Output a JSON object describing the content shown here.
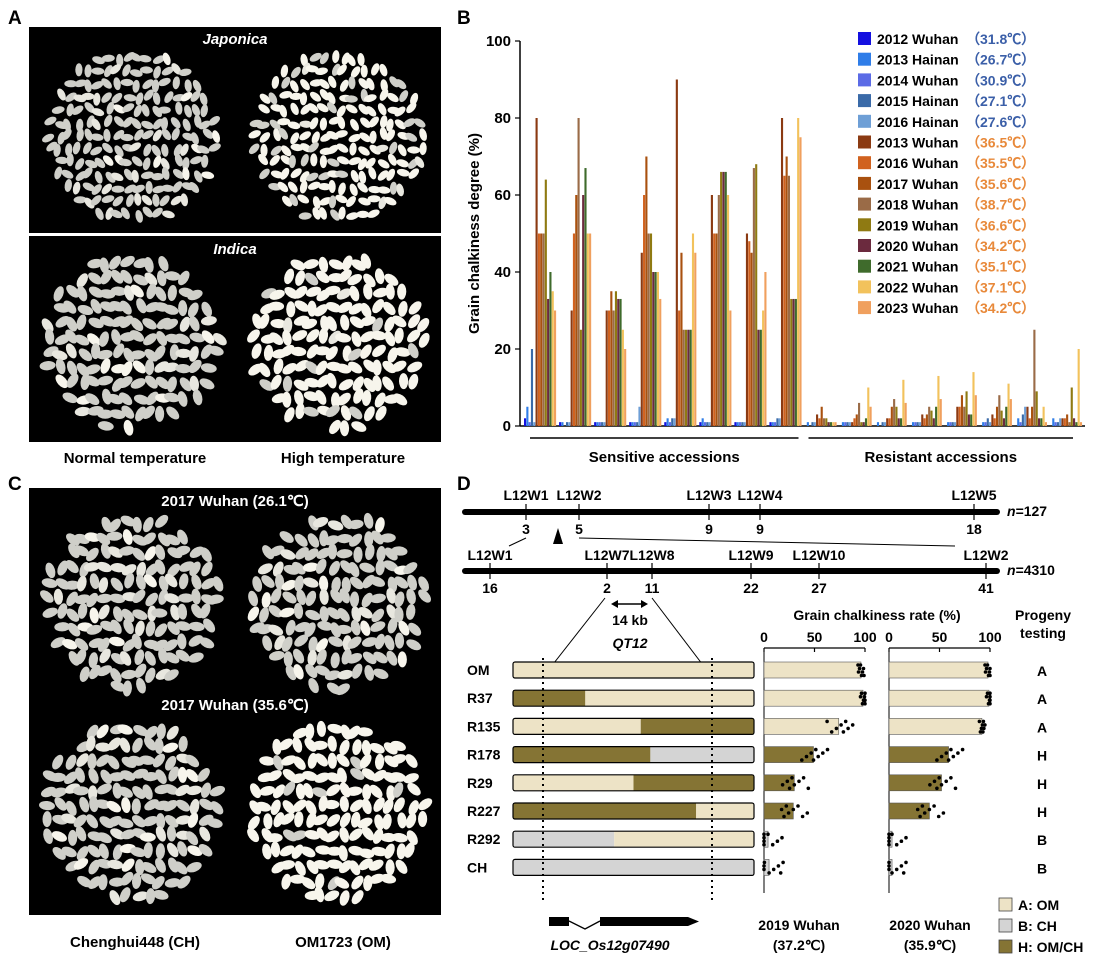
{
  "panels": {
    "a": {
      "letter": "A",
      "top_title": "Japonica",
      "bottom_title": "Indica",
      "caption_left": "Normal temperature",
      "caption_right": "High temperature"
    },
    "b": {
      "letter": "B"
    },
    "c": {
      "letter": "C",
      "top_title": "2017 Wuhan (26.1℃)",
      "bottom_title": "2017 Wuhan (35.6℃)",
      "caption_left": "Chenghui448 (CH)",
      "caption_right": "OM1723 (OM)"
    },
    "d": {
      "letter": "D"
    }
  },
  "colors": {
    "grain": "#cfcfc9",
    "grain_chalky": "#f7f5ec",
    "photo_bg": "#000000",
    "cool_temp": "#3b5fa8",
    "hot_temp": "#e8893a",
    "om_fill": "#ede3c6",
    "ch_fill": "#d4d4d4",
    "het_fill": "#857434"
  },
  "chart_data": {
    "type": "bar",
    "ylabel": "Grain chalkiness degree (%)",
    "ylim": [
      0,
      100
    ],
    "yticks": [
      "0",
      "20",
      "40",
      "60",
      "80",
      "100"
    ],
    "group_labels": [
      "Sensitive accessions",
      "Resistant accessions"
    ],
    "sensitive_count": 8,
    "resistant_count": 8,
    "legend": [
      {
        "year_site": "2012 Wuhan",
        "temp": "（31.8℃）",
        "color": "#1410e0",
        "temp_class": "cool"
      },
      {
        "year_site": "2013 Hainan",
        "temp": "（26.7℃）",
        "color": "#2f7de8",
        "temp_class": "cool"
      },
      {
        "year_site": "2014 Wuhan",
        "temp": "（30.9℃）",
        "color": "#5b6be6",
        "temp_class": "cool"
      },
      {
        "year_site": "2015 Hainan",
        "temp": "（27.1℃）",
        "color": "#3a6aa8",
        "temp_class": "cool"
      },
      {
        "year_site": "2016 Hainan",
        "temp": "（27.6℃）",
        "color": "#6e9fd6",
        "temp_class": "cool"
      },
      {
        "year_site": "2013 Wuhan",
        "temp": "（36.5℃）",
        "color": "#8b3a12",
        "temp_class": "hot"
      },
      {
        "year_site": "2016 Wuhan",
        "temp": "（35.5℃）",
        "color": "#d1621f",
        "temp_class": "hot"
      },
      {
        "year_site": "2017 Wuhan",
        "temp": "（35.6℃）",
        "color": "#a9510f",
        "temp_class": "hot"
      },
      {
        "year_site": "2018 Wuhan",
        "temp": "（38.7℃）",
        "color": "#9a6b47",
        "temp_class": "hot"
      },
      {
        "year_site": "2019 Wuhan",
        "temp": "（36.6℃）",
        "color": "#8f7a12",
        "temp_class": "hot"
      },
      {
        "year_site": "2020 Wuhan",
        "temp": "（34.2℃）",
        "color": "#6b2a3e",
        "temp_class": "hot"
      },
      {
        "year_site": "2021 Wuhan",
        "temp": "（35.1℃）",
        "color": "#3f6b2c",
        "temp_class": "hot"
      },
      {
        "year_site": "2022 Wuhan",
        "temp": "（37.1℃）",
        "color": "#f2c25c",
        "temp_class": "hot"
      },
      {
        "year_site": "2023 Wuhan",
        "temp": "（34.2℃）",
        "color": "#f0a05e",
        "temp_class": "hot"
      }
    ],
    "series_values": [
      [
        2,
        1,
        1,
        1,
        1,
        1,
        1,
        1,
        0,
        0,
        0,
        0,
        0,
        0,
        0,
        0
      ],
      [
        5,
        1,
        1,
        1,
        2,
        2,
        1,
        1,
        1,
        1,
        1,
        1,
        1,
        1,
        2,
        2
      ],
      [
        1,
        0,
        1,
        1,
        1,
        1,
        1,
        1,
        0,
        1,
        0,
        1,
        1,
        1,
        1,
        1
      ],
      [
        20,
        1,
        1,
        1,
        2,
        1,
        1,
        2,
        1,
        1,
        1,
        1,
        1,
        2,
        3,
        1
      ],
      [
        1,
        1,
        1,
        5,
        2,
        1,
        1,
        2,
        1,
        1,
        1,
        1,
        1,
        1,
        5,
        2
      ],
      [
        80,
        30,
        30,
        45,
        90,
        60,
        50,
        80,
        3,
        1,
        2,
        3,
        5,
        3,
        5,
        2
      ],
      [
        50,
        50,
        30,
        60,
        30,
        50,
        48,
        65,
        2,
        2,
        2,
        2,
        5,
        2,
        2,
        2
      ],
      [
        50,
        60,
        35,
        70,
        45,
        50,
        45,
        70,
        5,
        3,
        5,
        3,
        8,
        5,
        5,
        3
      ],
      [
        50,
        80,
        30,
        50,
        25,
        60,
        67,
        65,
        2,
        6,
        7,
        5,
        5,
        8,
        25,
        1
      ],
      [
        64,
        25,
        35,
        50,
        25,
        66,
        68,
        33,
        2,
        1,
        5,
        4,
        9,
        4,
        9,
        10
      ],
      [
        33,
        60,
        33,
        40,
        25,
        66,
        25,
        33,
        1,
        1,
        2,
        2,
        3,
        2,
        2,
        2
      ],
      [
        40,
        67,
        33,
        40,
        25,
        66,
        25,
        33,
        1,
        2,
        2,
        5,
        3,
        5,
        2,
        1
      ],
      [
        35,
        50,
        25,
        40,
        50,
        60,
        30,
        80,
        1,
        10,
        12,
        13,
        14,
        11,
        5,
        20
      ],
      [
        30,
        50,
        20,
        33,
        45,
        30,
        40,
        75,
        1,
        5,
        6,
        7,
        8,
        7,
        1,
        1
      ]
    ]
  },
  "map_d": {
    "row1": {
      "markers": [
        "L12W1",
        "L12W2",
        "L12W3",
        "L12W4",
        "L12W5"
      ],
      "counts": [
        "3",
        "5",
        "9",
        "9",
        "18"
      ],
      "n": "=127"
    },
    "row2": {
      "markers": [
        "L12W1",
        "L12W7",
        "L12W8",
        "L12W9",
        "L12W10",
        "L12W2"
      ],
      "counts": [
        "16",
        "2",
        "11",
        "22",
        "27",
        "41"
      ],
      "n": "=4310"
    },
    "n_italic": "n",
    "interval": "14 kb",
    "qtl": "QT12",
    "gene": "LOC_Os12g07490",
    "rate_title": "Grain chalkiness rate (%)",
    "rate_ticks": [
      "0",
      "50",
      "100"
    ],
    "progeny_title_1": "Progeny",
    "progeny_title_2": "testing",
    "rows": [
      {
        "name": "OM",
        "progeny": "A",
        "rate_2019": 96,
        "rate_2020": 98
      },
      {
        "name": "R37",
        "progeny": "A",
        "rate_2019": 98,
        "rate_2020": 99
      },
      {
        "name": "R135",
        "progeny": "A",
        "rate_2019": 74,
        "rate_2020": 92
      },
      {
        "name": "R178",
        "progeny": "H",
        "rate_2019": 49,
        "rate_2020": 59
      },
      {
        "name": "R29",
        "progeny": "H",
        "rate_2019": 30,
        "rate_2020": 52
      },
      {
        "name": "R227",
        "progeny": "H",
        "rate_2019": 29,
        "rate_2020": 40
      },
      {
        "name": "R292",
        "progeny": "B",
        "rate_2019": 4,
        "rate_2020": 3
      },
      {
        "name": "CH",
        "progeny": "B",
        "rate_2019": 5,
        "rate_2020": 3
      }
    ],
    "year_2019": "2019 Wuhan",
    "temp_2019": "(37.2℃)",
    "year_2020": "2020 Wuhan",
    "temp_2020": "(35.9℃)",
    "key": [
      "A: OM",
      "B: CH",
      "H: OM/CH"
    ]
  }
}
